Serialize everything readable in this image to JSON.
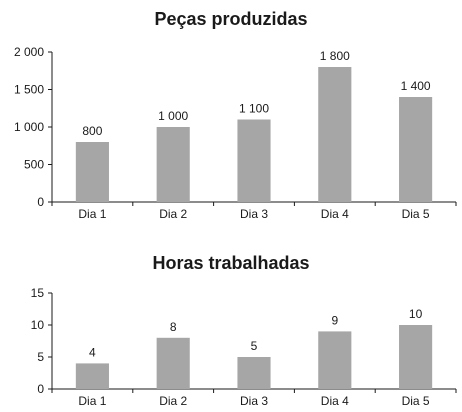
{
  "chart_data": [
    {
      "type": "bar",
      "title": "Peças produzidas",
      "categories": [
        "Dia 1",
        "Dia 2",
        "Dia 3",
        "Dia 4",
        "Dia 5"
      ],
      "values": [
        800,
        1000,
        1100,
        1800,
        1400
      ],
      "value_labels": [
        "800",
        "1 000",
        "1 100",
        "1 800",
        "1 400"
      ],
      "ylim": [
        0,
        2000
      ],
      "yticks": [
        0,
        500,
        1000,
        1500,
        2000
      ],
      "ytick_labels": [
        "0",
        "500",
        "1 000",
        "1 500",
        "2 000"
      ],
      "xlabel": "",
      "ylabel": "",
      "grid": false,
      "bar_color": "#a6a6a6"
    },
    {
      "type": "bar",
      "title": "Horas trabalhadas",
      "categories": [
        "Dia 1",
        "Dia 2",
        "Dia 3",
        "Dia 4",
        "Dia 5"
      ],
      "values": [
        4,
        8,
        5,
        9,
        10
      ],
      "value_labels": [
        "4",
        "8",
        "5",
        "9",
        "10"
      ],
      "ylim": [
        0,
        15
      ],
      "yticks": [
        0,
        5,
        10,
        15
      ],
      "ytick_labels": [
        "0",
        "5",
        "10",
        "15"
      ],
      "xlabel": "",
      "ylabel": "",
      "grid": false,
      "bar_color": "#a6a6a6"
    }
  ]
}
